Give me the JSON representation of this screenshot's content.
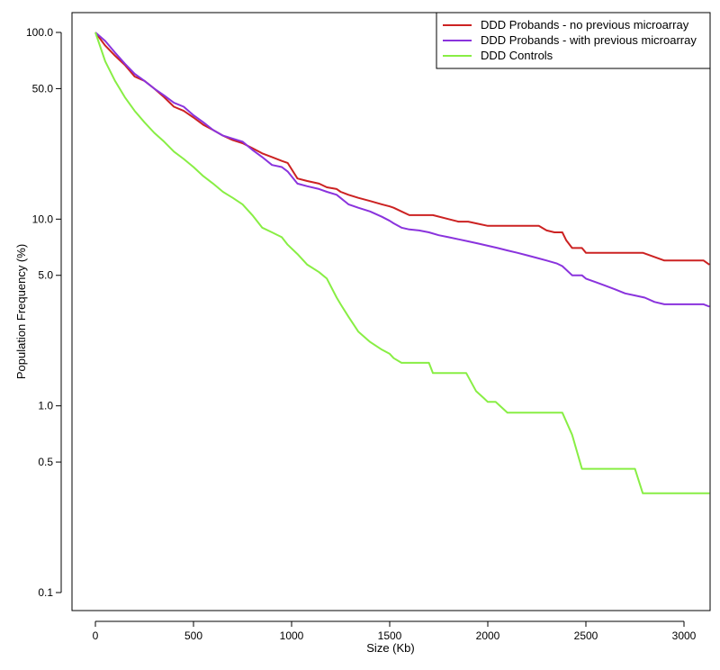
{
  "chart_data": {
    "type": "line",
    "title": "",
    "xlabel": "Size (Kb)",
    "ylabel": "Population Frequency (%)",
    "xlim": [
      0,
      3130
    ],
    "ylim": [
      0.1,
      100
    ],
    "y_scale": "log",
    "x_ticks": [
      0,
      500,
      1000,
      1500,
      2000,
      2500,
      3000
    ],
    "x_tick_labels": [
      "0",
      "500",
      "1000",
      "1500",
      "2000",
      "2500",
      "3000"
    ],
    "y_ticks": [
      0.1,
      0.5,
      1.0,
      5.0,
      10.0,
      50.0,
      100.0
    ],
    "y_tick_labels": [
      "0.1",
      "0.5",
      "1.0",
      "5.0",
      "10.0",
      "50.0",
      "100.0"
    ],
    "grid": false,
    "legend_position": "top-right",
    "series": [
      {
        "name": "DDD Probands - no previous microarray",
        "color": "#cc2222",
        "x": [
          0,
          50,
          100,
          150,
          200,
          250,
          300,
          350,
          400,
          450,
          500,
          550,
          600,
          650,
          700,
          750,
          800,
          850,
          900,
          950,
          980,
          1030,
          1080,
          1140,
          1180,
          1230,
          1250,
          1290,
          1340,
          1400,
          1460,
          1500,
          1520,
          1560,
          1600,
          1700,
          1720,
          1800,
          1850,
          1900,
          1940,
          2000,
          2100,
          2200,
          2240,
          2260,
          2300,
          2340,
          2380,
          2400,
          2430,
          2480,
          2500,
          2600,
          2750,
          2790,
          2900,
          3000,
          3100,
          3130
        ],
        "y": [
          100,
          85,
          75,
          67,
          58,
          55,
          50,
          45,
          40,
          38,
          35,
          32,
          30,
          28,
          26.5,
          25.5,
          24,
          22.5,
          21.5,
          20.5,
          20,
          16.5,
          16,
          15.5,
          14.8,
          14.5,
          14,
          13.5,
          13,
          12.5,
          12,
          11.7,
          11.5,
          11,
          10.5,
          10.5,
          10.5,
          10,
          9.7,
          9.7,
          9.5,
          9.2,
          9.2,
          9.2,
          9.2,
          9.2,
          8.7,
          8.5,
          8.5,
          7.7,
          7,
          7,
          6.6,
          6.6,
          6.6,
          6.6,
          6,
          6,
          6,
          5.7
        ]
      },
      {
        "name": "DDD Probands - with previous microarray",
        "color": "#8a33dd",
        "x": [
          0,
          50,
          100,
          150,
          200,
          250,
          300,
          350,
          400,
          450,
          500,
          550,
          600,
          650,
          700,
          750,
          800,
          850,
          900,
          950,
          980,
          1030,
          1080,
          1140,
          1180,
          1230,
          1290,
          1340,
          1400,
          1460,
          1500,
          1520,
          1560,
          1600,
          1650,
          1700,
          1750,
          1800,
          1850,
          1900,
          1950,
          2000,
          2050,
          2100,
          2150,
          2200,
          2250,
          2300,
          2350,
          2380,
          2430,
          2480,
          2500,
          2550,
          2600,
          2650,
          2700,
          2750,
          2800,
          2850,
          2900,
          3000,
          3100,
          3130
        ],
        "y": [
          100,
          90,
          78,
          68,
          60,
          55,
          50,
          46,
          42,
          40,
          36,
          33,
          30,
          28,
          27,
          26,
          23.5,
          21.5,
          19.5,
          19,
          18,
          15.5,
          15,
          14.5,
          14,
          13.5,
          12,
          11.5,
          11,
          10.3,
          9.8,
          9.5,
          9,
          8.8,
          8.7,
          8.5,
          8.2,
          8,
          7.8,
          7.6,
          7.4,
          7.2,
          7,
          6.8,
          6.6,
          6.4,
          6.2,
          6,
          5.8,
          5.6,
          5,
          5,
          4.8,
          4.6,
          4.4,
          4.2,
          4,
          3.9,
          3.8,
          3.6,
          3.5,
          3.5,
          3.5,
          3.4
        ]
      },
      {
        "name": "DDD Controls",
        "color": "#88ee44",
        "x": [
          0,
          50,
          100,
          150,
          200,
          250,
          300,
          350,
          400,
          450,
          500,
          550,
          600,
          650,
          700,
          750,
          800,
          850,
          900,
          950,
          980,
          1030,
          1080,
          1140,
          1180,
          1230,
          1250,
          1290,
          1340,
          1400,
          1460,
          1500,
          1520,
          1560,
          1600,
          1650,
          1700,
          1720,
          1800,
          1850,
          1890,
          1940,
          1980,
          2000,
          2040,
          2100,
          2200,
          2300,
          2380,
          2430,
          2480,
          2500,
          2600,
          2750,
          2790,
          2900,
          3000,
          3100,
          3130
        ],
        "y": [
          100,
          70,
          55,
          45,
          38,
          33,
          29,
          26,
          23,
          21,
          19,
          17,
          15.5,
          14,
          13,
          12,
          10.5,
          9,
          8.5,
          8,
          7.3,
          6.5,
          5.7,
          5.2,
          4.8,
          3.8,
          3.5,
          3,
          2.5,
          2.2,
          2,
          1.9,
          1.8,
          1.7,
          1.7,
          1.7,
          1.7,
          1.5,
          1.5,
          1.5,
          1.5,
          1.2,
          1.1,
          1.05,
          1.05,
          0.92,
          0.92,
          0.92,
          0.92,
          0.7,
          0.46,
          0.46,
          0.46,
          0.46,
          0.34,
          0.34,
          0.34,
          0.34,
          0.34
        ]
      }
    ]
  }
}
